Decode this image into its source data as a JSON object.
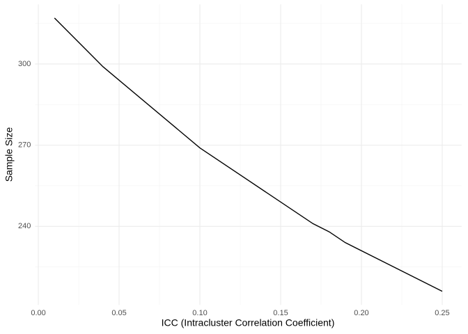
{
  "chart_data": {
    "type": "line",
    "x_label": "ICC (Intracluster Correlation Coefficient)",
    "y_label": "Sample Size",
    "x": [
      0.01,
      0.04,
      0.1,
      0.17,
      0.18,
      0.19,
      0.25
    ],
    "series": [
      {
        "color": "#000000",
        "values": [
          317,
          299,
          269,
          241,
          238,
          234,
          216
        ]
      }
    ],
    "xlim": [
      -0.002,
      0.262
    ],
    "ylim": [
      210.95,
      322.05
    ],
    "xticks": [
      {
        "value": 0,
        "label": "0.00"
      },
      0.05,
      {
        "value": 0.1,
        "label": "0.10"
      },
      0.15,
      {
        "value": 0.2,
        "label": "0.20"
      },
      0.25
    ],
    "yticks": [
      240,
      270,
      300
    ],
    "x_minor_ticks": [
      0.025,
      0.075,
      0.125,
      0.175,
      0.225
    ],
    "y_minor_ticks": [
      225,
      255,
      285,
      315
    ],
    "grid": true
  }
}
